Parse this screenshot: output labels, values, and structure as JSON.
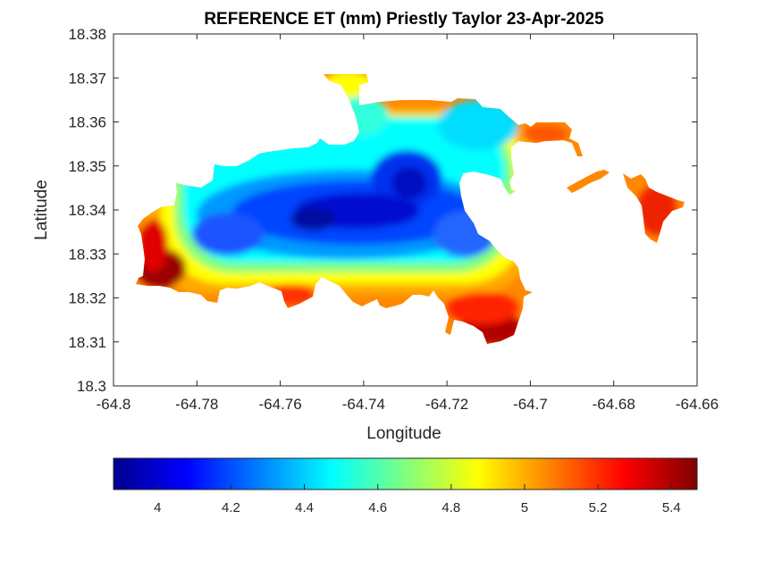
{
  "chart_data": {
    "type": "heatmap",
    "title": "REFERENCE ET (mm) Priestly Taylor 23-Apr-2025",
    "xlabel": "Longitude",
    "ylabel": "Latitude",
    "xlim": [
      -64.8,
      -64.66
    ],
    "ylim": [
      18.3,
      18.38
    ],
    "x_ticks": [
      -64.8,
      -64.78,
      -64.76,
      -64.74,
      -64.72,
      -64.7,
      -64.68,
      -64.66
    ],
    "x_tick_labels": [
      "-64.8",
      "-64.78",
      "-64.76",
      "-64.74",
      "-64.72",
      "-64.7",
      "-64.68",
      "-64.66"
    ],
    "y_ticks": [
      18.3,
      18.31,
      18.32,
      18.33,
      18.34,
      18.35,
      18.36,
      18.37,
      18.38
    ],
    "y_tick_labels": [
      "18.3",
      "18.31",
      "18.32",
      "18.33",
      "18.34",
      "18.35",
      "18.36",
      "18.37",
      "18.38"
    ],
    "grid": false,
    "colormap": "jet",
    "colorbar": {
      "orientation": "horizontal",
      "placement": "below",
      "range": [
        3.88,
        5.47
      ],
      "ticks": [
        4,
        4.2,
        4.4,
        4.6,
        4.8,
        5,
        5.2,
        5.4
      ],
      "tick_labels": [
        "4",
        "4.2",
        "4.4",
        "4.6",
        "4.8",
        "5",
        "5.2",
        "5.4"
      ]
    },
    "field": {
      "description_of_values": "Reference evapotranspiration (mm) over island land area",
      "value_range": [
        3.9,
        5.45
      ],
      "low_centers": [
        {
          "lon": -64.745,
          "lat": 18.3375,
          "value": 3.9
        },
        {
          "lon": -64.73,
          "lat": 18.345,
          "value": 4.0
        },
        {
          "lon": -64.772,
          "lat": 18.3345,
          "value": 4.15
        },
        {
          "lon": -64.72,
          "lat": 18.335,
          "value": 4.1
        }
      ],
      "high_centers": [
        {
          "lon": -64.789,
          "lat": 18.3245,
          "value": 5.45
        },
        {
          "lon": -64.714,
          "lat": 18.312,
          "value": 5.4
        },
        {
          "lon": -64.669,
          "lat": 18.337,
          "value": 5.2
        },
        {
          "lon": -64.762,
          "lat": 18.318,
          "value": 5.2
        }
      ]
    }
  }
}
